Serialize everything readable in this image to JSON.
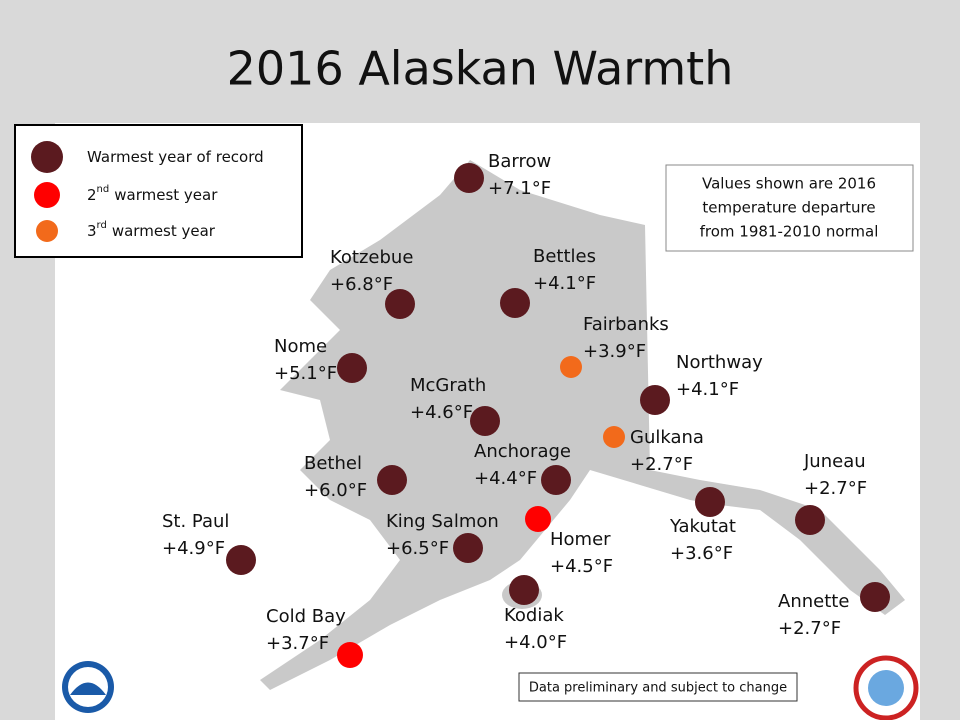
{
  "title": "2016 Alaskan Warmth",
  "legend": [
    {
      "color": "#5b1a1f",
      "prefix": "Warmest year of record"
    },
    {
      "color": "#ff0000",
      "prefix": "2",
      "sup": "nd",
      "text": "warmest year"
    },
    {
      "color": "#f26a1b",
      "prefix": "3",
      "sup": "rd",
      "text": "warmest year"
    }
  ],
  "note": [
    "Values shown are 2016",
    "temperature departure",
    "from 1981-2010 normal"
  ],
  "footer": "Data preliminary and subject to change",
  "stations": [
    {
      "name": "Barrow",
      "departure": "+7.1°F",
      "color": "#5b1a1f"
    },
    {
      "name": "Kotzebue",
      "departure": "+6.8°F",
      "color": "#5b1a1f"
    },
    {
      "name": "Bettles",
      "departure": "+4.1°F",
      "color": "#5b1a1f"
    },
    {
      "name": "Fairbanks",
      "departure": "+3.9°F",
      "color": "#f26a1b"
    },
    {
      "name": "Nome",
      "departure": "+5.1°F",
      "color": "#5b1a1f"
    },
    {
      "name": "Northway",
      "departure": "+4.1°F",
      "color": "#5b1a1f"
    },
    {
      "name": "McGrath",
      "departure": "+4.6°F",
      "color": "#5b1a1f"
    },
    {
      "name": "Gulkana",
      "departure": "+2.7°F",
      "color": "#f26a1b"
    },
    {
      "name": "Bethel",
      "departure": "+6.0°F",
      "color": "#5b1a1f"
    },
    {
      "name": "Anchorage",
      "departure": "+4.4°F",
      "color": "#5b1a1f"
    },
    {
      "name": "Juneau",
      "departure": "+2.7°F",
      "color": "#5b1a1f"
    },
    {
      "name": "Yakutat",
      "departure": "+3.6°F",
      "color": "#5b1a1f"
    },
    {
      "name": "St. Paul",
      "departure": "+4.9°F",
      "color": "#5b1a1f"
    },
    {
      "name": "King Salmon",
      "departure": "+6.5°F",
      "color": "#5b1a1f"
    },
    {
      "name": "Homer",
      "departure": "+4.5°F",
      "color": "#ff0000"
    },
    {
      "name": "Annette",
      "departure": "+2.7°F",
      "color": "#5b1a1f"
    },
    {
      "name": "Kodiak",
      "departure": "+4.0°F",
      "color": "#5b1a1f"
    },
    {
      "name": "Cold Bay",
      "departure": "+3.7°F",
      "color": "#ff0000"
    }
  ]
}
